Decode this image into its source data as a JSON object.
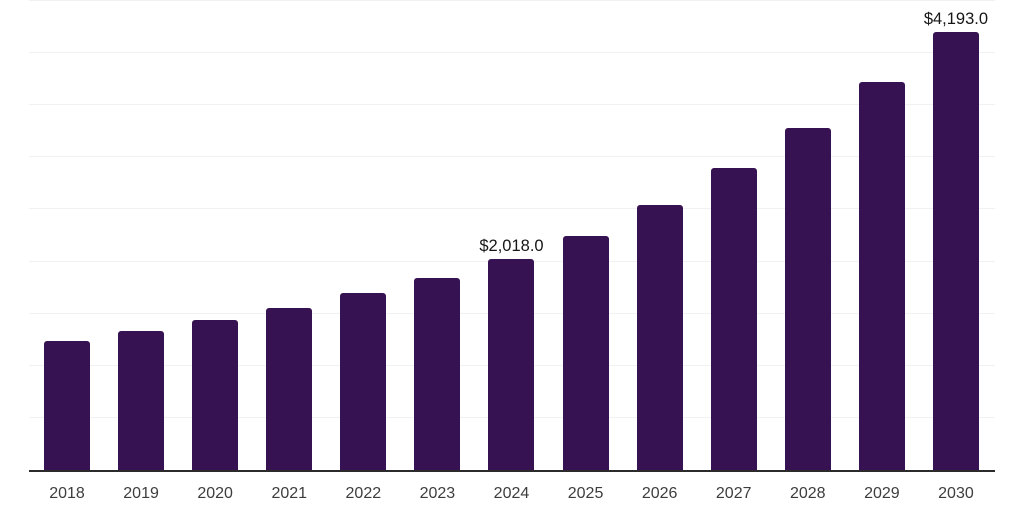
{
  "chart_data": {
    "type": "bar",
    "title": "",
    "xlabel": "",
    "ylabel": "",
    "categories": [
      "2018",
      "2019",
      "2020",
      "2021",
      "2022",
      "2023",
      "2024",
      "2025",
      "2026",
      "2027",
      "2028",
      "2029",
      "2030"
    ],
    "values": [
      1240,
      1335,
      1440,
      1555,
      1695,
      1840,
      2018,
      2240,
      2535,
      2895,
      3275,
      3715,
      4193
    ],
    "point_labels": [
      "",
      "",
      "",
      "",
      "",
      "",
      "$2,018.0",
      "",
      "",
      "",
      "",
      "",
      "$4,193.0"
    ],
    "ylim": [
      0,
      4500
    ],
    "gridline_step": 500,
    "grid": "horizontal-only",
    "y_tick_labels_visible": false,
    "legend": "none",
    "colors": {
      "bar": "#371253",
      "axis_line": "#2b2b2b",
      "gridline": "#f1f1f3",
      "tick_label": "#3d3d3d",
      "value_label": "#161616",
      "background": "#ffffff"
    }
  }
}
